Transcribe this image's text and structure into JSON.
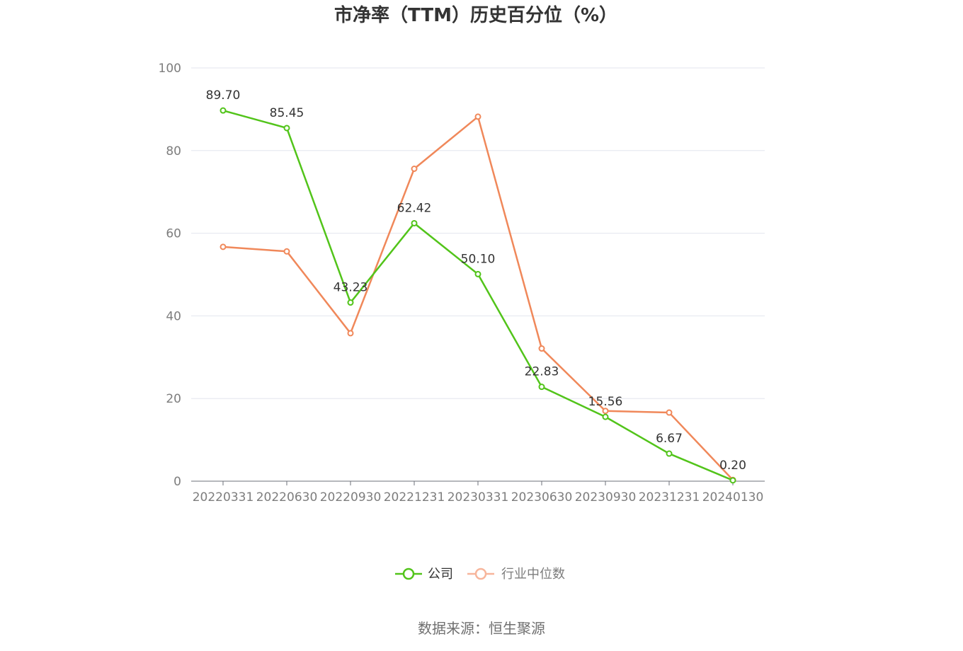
{
  "chart_data": {
    "type": "line",
    "title": "市净率（TTM）历史百分位（%）",
    "categories": [
      "20220331",
      "20220630",
      "20220930",
      "20221231",
      "20230331",
      "20230630",
      "20230930",
      "20231231",
      "20240130"
    ],
    "ylim": [
      0,
      100
    ],
    "yticks": [
      0,
      20,
      40,
      60,
      80,
      100
    ],
    "grid": true,
    "legend_position": "bottom-center",
    "series": [
      {
        "name": "公司",
        "color": "#52c41a",
        "values": [
          89.7,
          85.45,
          43.23,
          62.42,
          50.1,
          22.83,
          15.56,
          6.67,
          0.2
        ],
        "labels": [
          "89.70",
          "85.45",
          "43.23",
          "62.42",
          "50.10",
          "22.83",
          "15.56",
          "6.67",
          "0.20"
        ]
      },
      {
        "name": "行业中位数",
        "color": "#f0885a",
        "values": [
          56.7,
          55.6,
          35.8,
          75.6,
          88.2,
          32.1,
          17.0,
          16.6,
          0.3
        ]
      }
    ]
  },
  "source": "数据来源：恒生聚源"
}
